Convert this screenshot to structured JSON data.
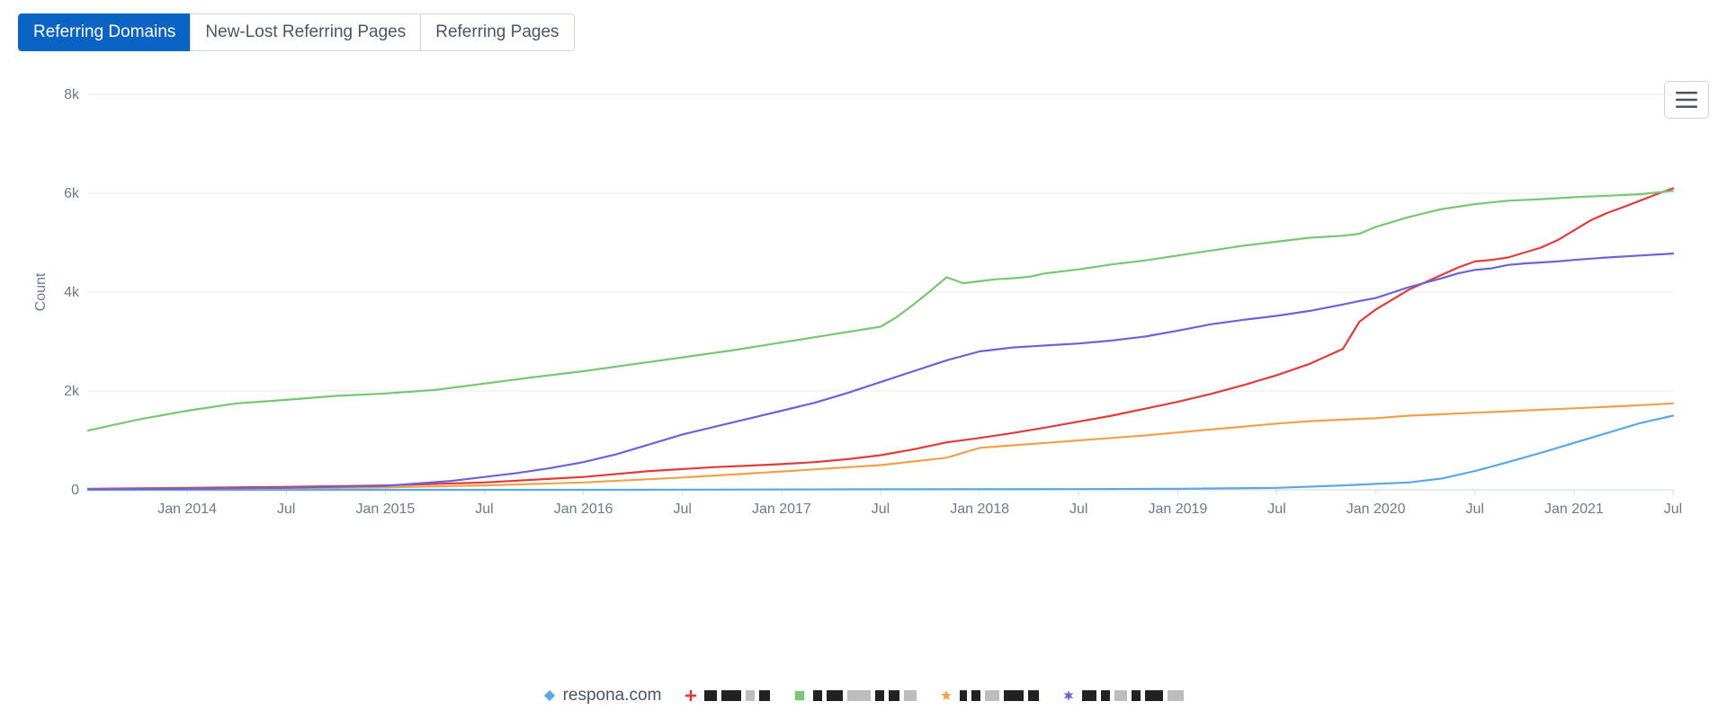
{
  "tabs": [
    {
      "label": "Referring Domains",
      "active": true
    },
    {
      "label": "New-Lost Referring Pages",
      "active": false
    },
    {
      "label": "Referring Pages",
      "active": false
    }
  ],
  "chart": {
    "type": "line",
    "ylabel": "Count",
    "ylabel_color": "#6b7a90",
    "ylabel_fontsize": 16,
    "background_color": "#ffffff",
    "grid_color": "#e6e9ed",
    "axis_line_color": "#d8dde5",
    "tick_font_color": "#6b7a90",
    "tick_fontsize": 16,
    "ylim": [
      0,
      8000
    ],
    "yticks": [
      {
        "v": 0,
        "label": "0"
      },
      {
        "v": 2000,
        "label": "2k"
      },
      {
        "v": 4000,
        "label": "4k"
      },
      {
        "v": 6000,
        "label": "6k"
      },
      {
        "v": 8000,
        "label": "8k"
      }
    ],
    "x_range": [
      0,
      96
    ],
    "xticks": [
      {
        "v": 6,
        "label": "Jan 2014"
      },
      {
        "v": 12,
        "label": "Jul"
      },
      {
        "v": 18,
        "label": "Jan 2015"
      },
      {
        "v": 24,
        "label": "Jul"
      },
      {
        "v": 30,
        "label": "Jan 2016"
      },
      {
        "v": 36,
        "label": "Jul"
      },
      {
        "v": 42,
        "label": "Jan 2017"
      },
      {
        "v": 48,
        "label": "Jul"
      },
      {
        "v": 54,
        "label": "Jan 2018"
      },
      {
        "v": 60,
        "label": "Jul"
      },
      {
        "v": 66,
        "label": "Jan 2019"
      },
      {
        "v": 72,
        "label": "Jul"
      },
      {
        "v": 78,
        "label": "Jan 2020"
      },
      {
        "v": 84,
        "label": "Jul"
      },
      {
        "v": 90,
        "label": "Jan 2021"
      },
      {
        "v": 96,
        "label": "Jul"
      }
    ],
    "line_width": 2.2,
    "series": [
      {
        "id": "blue",
        "color": "#5aa9e6",
        "marker": "diamond",
        "legend_label": "respona.com",
        "redacted": false,
        "points": [
          [
            0,
            0
          ],
          [
            30,
            0
          ],
          [
            48,
            10
          ],
          [
            60,
            15
          ],
          [
            66,
            20
          ],
          [
            72,
            40
          ],
          [
            76,
            90
          ],
          [
            78,
            120
          ],
          [
            80,
            150
          ],
          [
            82,
            230
          ],
          [
            84,
            380
          ],
          [
            86,
            560
          ],
          [
            88,
            750
          ],
          [
            90,
            950
          ],
          [
            92,
            1150
          ],
          [
            94,
            1350
          ],
          [
            96,
            1500
          ]
        ]
      },
      {
        "id": "red",
        "color": "#e23b3b",
        "marker": "plus",
        "legend_label": "(redacted)",
        "redacted": true,
        "redact_pattern": [
          14,
          22,
          10,
          12
        ],
        "points": [
          [
            0,
            20
          ],
          [
            6,
            40
          ],
          [
            12,
            60
          ],
          [
            18,
            90
          ],
          [
            24,
            150
          ],
          [
            30,
            260
          ],
          [
            34,
            380
          ],
          [
            36,
            420
          ],
          [
            38,
            460
          ],
          [
            40,
            490
          ],
          [
            42,
            520
          ],
          [
            44,
            560
          ],
          [
            46,
            620
          ],
          [
            48,
            700
          ],
          [
            50,
            820
          ],
          [
            52,
            960
          ],
          [
            54,
            1050
          ],
          [
            56,
            1150
          ],
          [
            58,
            1260
          ],
          [
            60,
            1380
          ],
          [
            62,
            1500
          ],
          [
            64,
            1640
          ],
          [
            66,
            1780
          ],
          [
            68,
            1940
          ],
          [
            70,
            2120
          ],
          [
            72,
            2320
          ],
          [
            74,
            2550
          ],
          [
            76,
            2850
          ],
          [
            77,
            3400
          ],
          [
            78,
            3650
          ],
          [
            79,
            3850
          ],
          [
            80,
            4050
          ],
          [
            81,
            4200
          ],
          [
            82,
            4350
          ],
          [
            83,
            4500
          ],
          [
            84,
            4620
          ],
          [
            85,
            4650
          ],
          [
            86,
            4700
          ],
          [
            87,
            4800
          ],
          [
            88,
            4900
          ],
          [
            89,
            5050
          ],
          [
            90,
            5250
          ],
          [
            91,
            5450
          ],
          [
            92,
            5600
          ],
          [
            93,
            5720
          ],
          [
            94,
            5850
          ],
          [
            95,
            5980
          ],
          [
            96,
            6100
          ]
        ]
      },
      {
        "id": "green",
        "color": "#77c774",
        "marker": "square",
        "legend_label": "(redacted)",
        "redacted": true,
        "redact_pattern": [
          10,
          18,
          26,
          10,
          12,
          14
        ],
        "points": [
          [
            0,
            1200
          ],
          [
            3,
            1420
          ],
          [
            6,
            1600
          ],
          [
            9,
            1750
          ],
          [
            12,
            1820
          ],
          [
            15,
            1900
          ],
          [
            18,
            1950
          ],
          [
            21,
            2020
          ],
          [
            24,
            2150
          ],
          [
            27,
            2280
          ],
          [
            30,
            2400
          ],
          [
            33,
            2540
          ],
          [
            36,
            2680
          ],
          [
            39,
            2820
          ],
          [
            42,
            2980
          ],
          [
            45,
            3140
          ],
          [
            48,
            3300
          ],
          [
            49,
            3500
          ],
          [
            50,
            3750
          ],
          [
            51,
            4020
          ],
          [
            52,
            4300
          ],
          [
            53,
            4180
          ],
          [
            54,
            4220
          ],
          [
            55,
            4260
          ],
          [
            56,
            4280
          ],
          [
            57,
            4310
          ],
          [
            58,
            4380
          ],
          [
            60,
            4460
          ],
          [
            62,
            4560
          ],
          [
            64,
            4640
          ],
          [
            66,
            4740
          ],
          [
            68,
            4840
          ],
          [
            70,
            4940
          ],
          [
            72,
            5020
          ],
          [
            74,
            5100
          ],
          [
            76,
            5140
          ],
          [
            77,
            5180
          ],
          [
            78,
            5320
          ],
          [
            80,
            5520
          ],
          [
            82,
            5680
          ],
          [
            84,
            5780
          ],
          [
            86,
            5850
          ],
          [
            88,
            5880
          ],
          [
            90,
            5920
          ],
          [
            92,
            5950
          ],
          [
            94,
            5980
          ],
          [
            96,
            6050
          ]
        ]
      },
      {
        "id": "orange",
        "color": "#f0a24a",
        "marker": "star",
        "legend_label": "(redacted)",
        "redacted": true,
        "redact_pattern": [
          8,
          10,
          16,
          22,
          12
        ],
        "points": [
          [
            0,
            10
          ],
          [
            6,
            20
          ],
          [
            12,
            30
          ],
          [
            18,
            50
          ],
          [
            24,
            90
          ],
          [
            30,
            150
          ],
          [
            36,
            250
          ],
          [
            42,
            370
          ],
          [
            48,
            500
          ],
          [
            52,
            650
          ],
          [
            54,
            850
          ],
          [
            56,
            900
          ],
          [
            58,
            950
          ],
          [
            60,
            1000
          ],
          [
            62,
            1050
          ],
          [
            64,
            1100
          ],
          [
            66,
            1160
          ],
          [
            68,
            1220
          ],
          [
            70,
            1280
          ],
          [
            72,
            1340
          ],
          [
            74,
            1390
          ],
          [
            76,
            1420
          ],
          [
            78,
            1450
          ],
          [
            80,
            1500
          ],
          [
            82,
            1530
          ],
          [
            84,
            1560
          ],
          [
            86,
            1590
          ],
          [
            88,
            1620
          ],
          [
            90,
            1650
          ],
          [
            92,
            1680
          ],
          [
            94,
            1710
          ],
          [
            96,
            1750
          ]
        ]
      },
      {
        "id": "purple",
        "color": "#6b63d8",
        "marker": "star6",
        "legend_label": "(redacted)",
        "redacted": true,
        "redact_pattern": [
          16,
          10,
          14,
          10,
          20,
          18
        ],
        "points": [
          [
            0,
            10
          ],
          [
            6,
            20
          ],
          [
            12,
            40
          ],
          [
            18,
            80
          ],
          [
            22,
            180
          ],
          [
            24,
            260
          ],
          [
            26,
            340
          ],
          [
            28,
            440
          ],
          [
            30,
            560
          ],
          [
            32,
            720
          ],
          [
            34,
            920
          ],
          [
            36,
            1120
          ],
          [
            38,
            1280
          ],
          [
            40,
            1440
          ],
          [
            42,
            1600
          ],
          [
            44,
            1760
          ],
          [
            46,
            1960
          ],
          [
            48,
            2180
          ],
          [
            50,
            2400
          ],
          [
            52,
            2620
          ],
          [
            54,
            2800
          ],
          [
            56,
            2880
          ],
          [
            58,
            2920
          ],
          [
            60,
            2960
          ],
          [
            62,
            3020
          ],
          [
            64,
            3100
          ],
          [
            66,
            3220
          ],
          [
            68,
            3350
          ],
          [
            70,
            3440
          ],
          [
            72,
            3520
          ],
          [
            74,
            3620
          ],
          [
            76,
            3750
          ],
          [
            77,
            3820
          ],
          [
            78,
            3880
          ],
          [
            80,
            4100
          ],
          [
            82,
            4280
          ],
          [
            83,
            4380
          ],
          [
            84,
            4450
          ],
          [
            85,
            4480
          ],
          [
            86,
            4550
          ],
          [
            87,
            4580
          ],
          [
            88,
            4600
          ],
          [
            89,
            4620
          ],
          [
            90,
            4650
          ],
          [
            92,
            4700
          ],
          [
            94,
            4740
          ],
          [
            96,
            4780
          ]
        ]
      }
    ]
  }
}
